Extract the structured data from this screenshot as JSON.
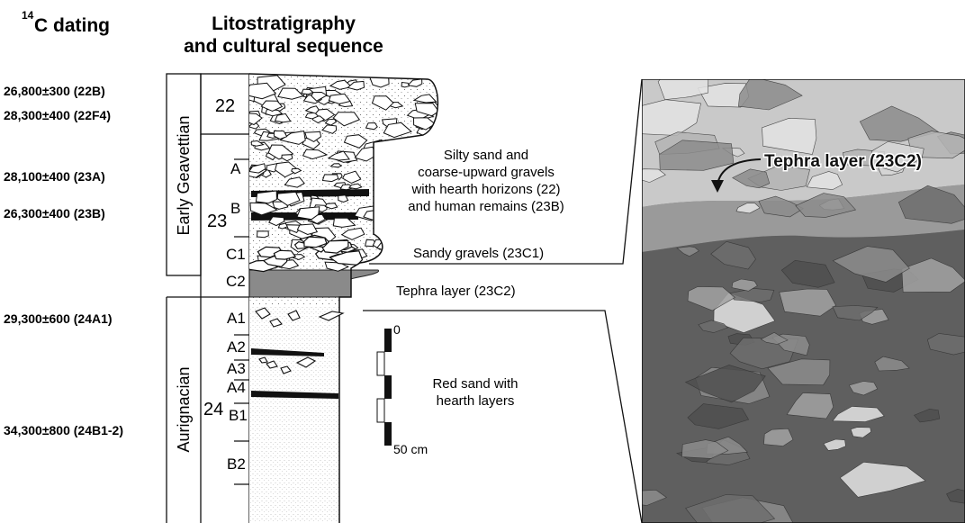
{
  "headers": {
    "c14_prefix": "14",
    "c14_main": "C dating",
    "litho_line1": "Litostratigraphy",
    "litho_line2": "and cultural sequence"
  },
  "dates": [
    "26,800±300 (22B)",
    "28,300±400 (22F4)",
    "28,100±400 (23A)",
    "26,300±400 (23B)",
    "29,300±600 (24A1)",
    "34,300±800 (24B1-2)"
  ],
  "cultures": {
    "early": "Early Geavettian",
    "aurignacian": "Aurignacian"
  },
  "units": {
    "u22": "22",
    "u23": "23",
    "u24": "24",
    "A": "A",
    "B": "B",
    "C1": "C1",
    "C2": "C2",
    "A1": "A1",
    "A2": "A2",
    "A3": "A3",
    "A4": "A4",
    "B1": "B1",
    "B2": "B2"
  },
  "descriptions": {
    "silty_1": "Silty sand and",
    "silty_2": "coarse-upward gravels",
    "silty_3": "with hearth horizons (22)",
    "silty_4": "and human remains (23B)",
    "sandy_gravels": "Sandy gravels (23C1)",
    "tephra": "Tephra layer (23C2)",
    "red_1": "Red sand with",
    "red_2": "hearth layers"
  },
  "scale": {
    "top": "0",
    "bottom": "50 cm"
  },
  "photo": {
    "label": "Tephra layer (23C2)"
  },
  "colors": {
    "tephra_fill": "#8a8a8a",
    "stipple": "#444444",
    "photo_base": "#7a7a7a"
  }
}
